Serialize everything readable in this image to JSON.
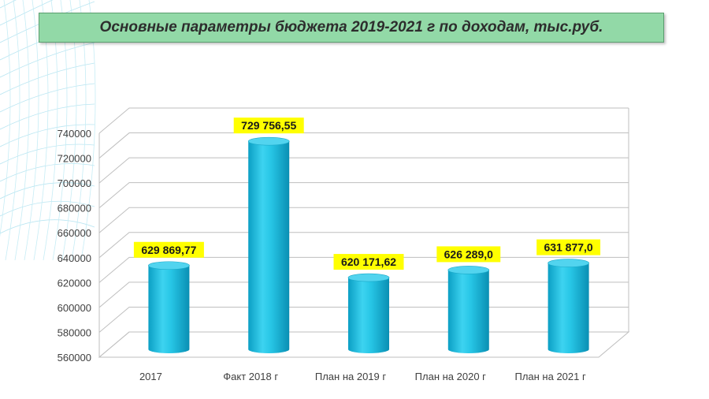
{
  "title": "Основные параметры бюджета 2019-2021 г по доходам, тыс.руб.",
  "chart_data": {
    "type": "bar",
    "title": "Основные параметры бюджета 2019-2021 г по доходам, тыс.руб.",
    "categories": [
      "2017",
      "Факт  2018 г",
      "План на 2019 г",
      "План на 2020 г",
      "План на 2021 г"
    ],
    "values": [
      629869.77,
      729756.55,
      620171.62,
      626289.0,
      631877.0
    ],
    "labels": [
      "629 869,77",
      "729 756,55",
      "620 171,62",
      "626 289,0",
      "631 877,0"
    ],
    "yticks": [
      "740000",
      "720000",
      "700000",
      "680000",
      "660000",
      "640000",
      "620000",
      "600000",
      "580000",
      "560000"
    ],
    "ylim": [
      560000,
      740000
    ],
    "grid": true,
    "legend": "none",
    "colors": {
      "bar": "#1fc1e0",
      "bar_top": "#52d4ef",
      "label_bg": "#ffff00",
      "title_bg": "#92d9a7",
      "grid": "#bfbfbf"
    }
  }
}
